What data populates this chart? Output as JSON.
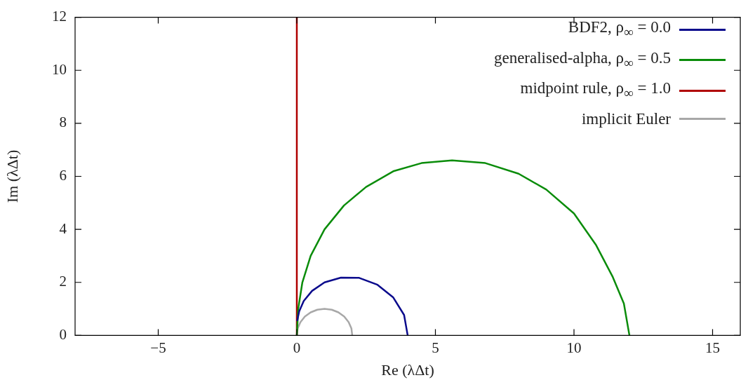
{
  "chart_data": {
    "type": "line",
    "xlabel": "Re (λΔt)",
    "ylabel": "Im (λΔt)",
    "xlim": [
      -8,
      16
    ],
    "ylim": [
      0,
      12
    ],
    "xticks": [
      -5,
      0,
      5,
      10,
      15
    ],
    "yticks": [
      0,
      2,
      4,
      6,
      8,
      10,
      12
    ],
    "grid": false,
    "legend": "top right",
    "marker": "none",
    "line_style": "solid",
    "series": [
      {
        "name": "BDF2, ρ$_{∞}$ = 0.0",
        "color": "#0a0a8c",
        "x": [
          0.018,
          0.086,
          0.25,
          0.55,
          1.0,
          1.59,
          2.25,
          2.91,
          3.48,
          3.87,
          4.0
        ],
        "values": [
          0.57,
          0.91,
          1.3,
          1.68,
          2.0,
          2.18,
          2.17,
          1.91,
          1.43,
          0.77,
          0
        ]
      },
      {
        "name": "generalised-alpha, ρ$_{∞}$ = 0.5",
        "color": "#0a8c0a",
        "x": [
          0,
          0.05,
          0.2,
          0.5,
          1.0,
          1.7,
          2.5,
          3.5,
          4.5,
          5.6,
          6.8,
          8.0,
          9.0,
          10.0,
          10.8,
          11.4,
          11.8,
          12.0
        ],
        "values": [
          0,
          1.0,
          2.0,
          3.0,
          4.0,
          4.9,
          5.6,
          6.2,
          6.5,
          6.6,
          6.5,
          6.1,
          5.5,
          4.6,
          3.4,
          2.2,
          1.2,
          0
        ]
      },
      {
        "name": "midpoint rule, ρ$_{∞}$ = 1.0",
        "color": "#b00000",
        "x": [
          0,
          0
        ],
        "values": [
          0,
          12
        ]
      },
      {
        "name": "implicit Euler",
        "color": "#a8a8a8",
        "x": [
          0,
          0.03,
          0.13,
          0.29,
          0.5,
          0.74,
          1.0,
          1.26,
          1.5,
          1.71,
          1.87,
          1.97,
          2.0
        ],
        "values": [
          0,
          0.26,
          0.5,
          0.71,
          0.87,
          0.97,
          1.0,
          0.97,
          0.87,
          0.71,
          0.5,
          0.26,
          0
        ]
      }
    ]
  }
}
